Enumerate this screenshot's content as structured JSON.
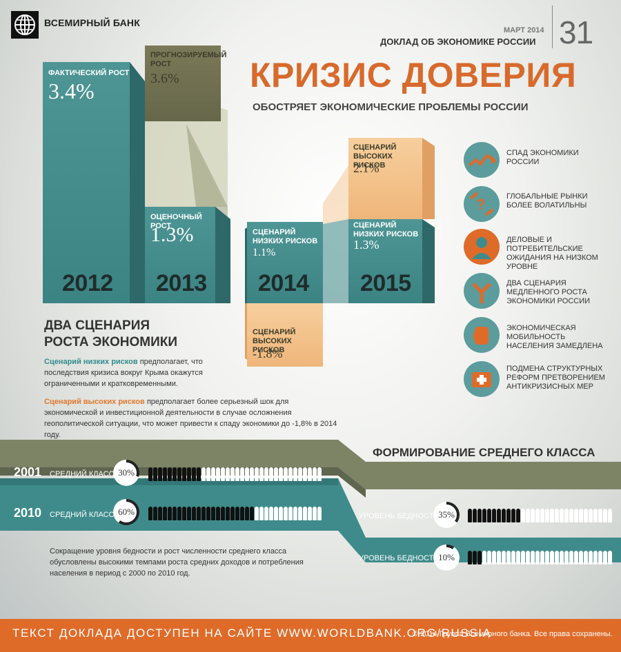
{
  "header": {
    "org": "ВСЕМИРНЫЙ БАНК",
    "date": "МАРТ 2014",
    "report": "ДОКЛАД ОБ ЭКОНОМИКЕ РОССИИ",
    "issue": "31"
  },
  "headline": "КРИЗИС ДОВЕРИЯ",
  "subheadline": "ОБОСТРЯЕТ ЭКОНОМИЧЕСКИЕ ПРОБЛЕМЫ РОССИИ",
  "growth": {
    "y2012": {
      "year": "2012",
      "label": "ФАКТИЧЕСКИЙ РОСТ",
      "value": "3.4%"
    },
    "y2013_forecast": {
      "label": "ПРОГНОЗИРУЕМЫЙ РОСТ",
      "value": "3.6%"
    },
    "y2013": {
      "year": "2013",
      "label": "ОЦЕНОЧНЫЙ РОСТ",
      "value": "1.3%"
    },
    "y2014_low": {
      "year": "2014",
      "label": "СЦЕНАРИЙ НИЗКИХ РИСКОВ",
      "value": "1.1%"
    },
    "y2014_high": {
      "label": "СЦЕНАРИЙ ВЫСОКИХ РИСКОВ",
      "value": "-1.8%"
    },
    "y2015_low": {
      "year": "2015",
      "label": "СЦЕНАРИЙ НИЗКИХ РИСКОВ",
      "value": "1.3%"
    },
    "y2015_high": {
      "label": "СЦЕНАРИЙ ВЫСОКИХ РИСКОВ",
      "value": "2.1%"
    }
  },
  "scenarios": {
    "title": "ДВА СЦЕНАРИЯ РОСТА ЭКОНОМИКИ",
    "low_name": "Сценарий низких рисков",
    "low_text": " предполагает, что последствия кризиса вокруг Крыма окажутся ограниченными и кратковременными.",
    "high_name": "Сценарий высоких рисков",
    "high_text": " предполагает более серьезный шок для экономической и инвестиционной деятельности в случае осложнения геополитической ситуации, что может привести к спаду экономики до -1,8% в 2014 году."
  },
  "issues": [
    {
      "icon": "downturn-icon",
      "text": "СПАД ЭКОНОМИКИ РОССИИ"
    },
    {
      "icon": "volatility-icon",
      "text": "ГЛОБАЛЬНЫЕ РЫНКИ БОЛЕЕ ВОЛАТИЛЬНЫ"
    },
    {
      "icon": "person-icon",
      "text": "ДЕЛОВЫЕ И ПОТРЕБИТЕЛЬСКИЕ ОЖИДАНИЯ НА НИЗКОМ УРОВНЕ"
    },
    {
      "icon": "split-arrows-icon",
      "text": "ДВА СЦЕНАРИЯ МЕДЛЕННОГО РОСТА ЭКОНОМИКИ РОССИИ"
    },
    {
      "icon": "hand-icon",
      "text": "ЭКОНОМИЧЕСКАЯ МОБИЛЬНОСТЬ НАСЕЛЕНИЯ ЗАМЕДЛЕНА"
    },
    {
      "icon": "first-aid-icon",
      "text": "ПОДМЕНА СТРУКТУРНЫХ РЕФОРМ ПРЕТВОРЕНИЕМ АНТИКРИЗИСНЫХ МЕР"
    }
  ],
  "middle_class": {
    "title": "ФОРМИРОВАНИЕ СРЕДНЕГО КЛАССА",
    "rows": [
      {
        "year": "2001",
        "label": "СРЕДНИЙ КЛАСС",
        "value": "30%",
        "fraction": 0.3
      },
      {
        "year": "2010",
        "label": "СРЕДНИЙ КЛАСС",
        "value": "60%",
        "fraction": 0.6
      }
    ],
    "poverty": [
      {
        "label": "УРОВЕНЬ БЕДНОСТИ",
        "value": "35%",
        "fraction": 0.35
      },
      {
        "label": "УРОВЕНЬ БЕДНОСТИ",
        "value": "10%",
        "fraction": 0.1
      }
    ],
    "note": "Сокращение уровня бедности и рост численности среднего класса обусловлены высокими темпами роста средних доходов и потребления населения в период с 2000 по 2010 год."
  },
  "colors": {
    "orange": "#df6b29",
    "teal": "#3f8b8b",
    "olive": "#7d8365",
    "peach": "#f2bd84"
  },
  "footer": {
    "site_text": "ТЕКСТ ДОКЛАДА ДОСТУПЕН НА САЙТЕ WWW.WORLDBANK.ORG/RUSSIA",
    "copyright": "© 2014 Группа Всемирного банка. Все права сохранены."
  }
}
